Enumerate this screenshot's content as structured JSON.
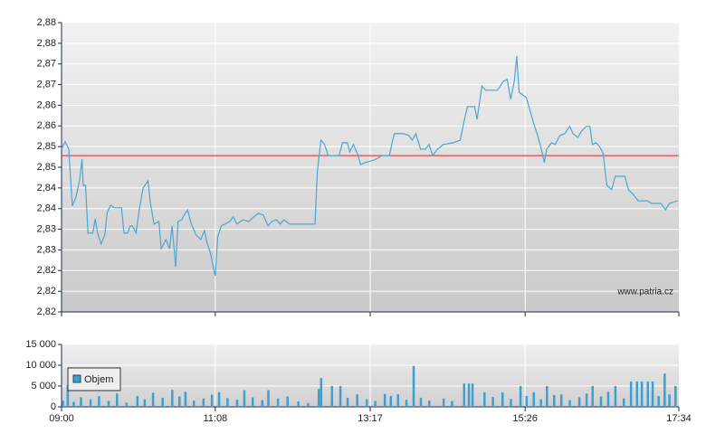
{
  "chart_data": [
    {
      "type": "line",
      "color": "#4aa6d4",
      "watermark": "www.patria.cz",
      "grid": true,
      "ref_line": {
        "value": 2.8515,
        "color": "#e02020"
      },
      "xlim": [
        "09:00",
        "17:34"
      ],
      "ylim": [
        2.8152,
        2.8824
      ],
      "yticks": [
        {
          "value": 2.8152,
          "label": "2,82"
        },
        {
          "value": 2.82,
          "label": "2,82"
        },
        {
          "value": 2.8248,
          "label": "2,82"
        },
        {
          "value": 2.8296,
          "label": "2,83"
        },
        {
          "value": 2.8344,
          "label": "2,83"
        },
        {
          "value": 2.8392,
          "label": "2,84"
        },
        {
          "value": 2.844,
          "label": "2,84"
        },
        {
          "value": 2.8488,
          "label": "2,85"
        },
        {
          "value": 2.8536,
          "label": "2,85"
        },
        {
          "value": 2.8584,
          "label": "2,86"
        },
        {
          "value": 2.8632,
          "label": "2,86"
        },
        {
          "value": 2.868,
          "label": "2,87"
        },
        {
          "value": 2.8728,
          "label": "2,87"
        },
        {
          "value": 2.8776,
          "label": "2,88"
        },
        {
          "value": 2.8824,
          "label": "2,88"
        }
      ],
      "x": [
        "09:00",
        "09:03",
        "09:06",
        "09:09",
        "09:12",
        "09:15",
        "09:17",
        "09:18",
        "09:20",
        "09:22",
        "09:26",
        "09:28",
        "09:30",
        "09:33",
        "09:36",
        "09:38",
        "09:41",
        "09:44",
        "09:50",
        "09:52",
        "09:55",
        "09:57",
        "09:59",
        "10:02",
        "10:05",
        "10:08",
        "10:12",
        "10:14",
        "10:17",
        "10:21",
        "10:23",
        "10:27",
        "10:30",
        "10:32",
        "10:35",
        "10:37",
        "10:40",
        "10:42",
        "10:45",
        "10:48",
        "10:52",
        "10:56",
        "10:59",
        "11:01",
        "11:04",
        "11:07",
        "11:08",
        "11:10",
        "11:13",
        "11:16",
        "11:20",
        "11:23",
        "11:26",
        "11:31",
        "11:36",
        "11:40",
        "11:44",
        "11:48",
        "11:52",
        "11:55",
        "11:59",
        "12:02",
        "12:05",
        "12:10",
        "12:17",
        "12:31",
        "12:33",
        "12:36",
        "12:39",
        "12:42",
        "12:46",
        "12:51",
        "12:54",
        "12:58",
        "13:00",
        "13:03",
        "13:07",
        "13:09",
        "13:13",
        "13:18",
        "13:22",
        "13:27",
        "13:33",
        "13:37",
        "13:45",
        "13:49",
        "13:52",
        "13:55",
        "13:59",
        "14:03",
        "14:06",
        "14:09",
        "14:13",
        "14:18",
        "14:26",
        "14:32",
        "14:35",
        "14:38",
        "14:44",
        "14:46",
        "14:50",
        "14:53",
        "14:56",
        "15:03",
        "15:08",
        "15:11",
        "15:14",
        "15:17",
        "15:19",
        "15:21",
        "15:24",
        "15:27",
        "15:30",
        "15:33",
        "15:36",
        "15:39",
        "15:42",
        "15:44",
        "15:48",
        "15:51",
        "15:55",
        "15:59",
        "16:03",
        "16:06",
        "16:10",
        "16:13",
        "16:17",
        "16:20",
        "16:22",
        "16:25",
        "16:28",
        "16:31",
        "16:34",
        "16:38",
        "16:41",
        "16:49",
        "16:52",
        "16:56",
        "17:00",
        "17:08",
        "17:11",
        "17:19",
        "17:23",
        "17:26",
        "17:33"
      ],
      "values": [
        2.853,
        2.8547,
        2.853,
        2.8398,
        2.8419,
        2.8457,
        2.8507,
        2.8446,
        2.8446,
        2.8335,
        2.8335,
        2.8368,
        2.8335,
        2.831,
        2.8331,
        2.8383,
        2.84,
        2.8394,
        2.8394,
        2.8335,
        2.8335,
        2.8352,
        2.8352,
        2.8335,
        2.8394,
        2.844,
        2.8457,
        2.8404,
        2.8356,
        2.8362,
        2.8299,
        2.832,
        2.8299,
        2.8352,
        2.8257,
        2.8362,
        2.8366,
        2.8377,
        2.8389,
        2.8356,
        2.8331,
        2.832,
        2.8341,
        2.8314,
        2.8289,
        2.8247,
        2.8236,
        2.8326,
        2.8352,
        2.8356,
        2.8362,
        2.8373,
        2.8356,
        2.8366,
        2.8362,
        2.8373,
        2.8381,
        2.8377,
        2.8352,
        2.8362,
        2.8366,
        2.8356,
        2.8366,
        2.8356,
        2.8356,
        2.8356,
        2.8478,
        2.8551,
        2.8541,
        2.8515,
        2.8515,
        2.8515,
        2.8545,
        2.8545,
        2.8524,
        2.8541,
        2.8515,
        2.8494,
        2.8499,
        2.8503,
        2.8507,
        2.8515,
        2.8515,
        2.8566,
        2.8566,
        2.8562,
        2.8551,
        2.8566,
        2.853,
        2.853,
        2.8541,
        2.8515,
        2.853,
        2.8541,
        2.8545,
        2.8551,
        2.8593,
        2.8629,
        2.8629,
        2.8599,
        2.8677,
        2.8667,
        2.8667,
        2.8667,
        2.8688,
        2.8692,
        2.8646,
        2.8688,
        2.8746,
        2.8662,
        2.8656,
        2.865,
        2.862,
        2.8591,
        2.8566,
        2.8536,
        2.8499,
        2.853,
        2.8545,
        2.8541,
        2.8562,
        2.8566,
        2.8583,
        2.8566,
        2.8557,
        2.8572,
        2.8583,
        2.8583,
        2.8541,
        2.8545,
        2.8536,
        2.852,
        2.8446,
        2.8436,
        2.8467,
        2.8467,
        2.8436,
        2.8425,
        2.841,
        2.841,
        2.8404,
        2.8404,
        2.8389,
        2.8404,
        2.841
      ]
    },
    {
      "type": "bar",
      "legend": "upper left",
      "grid": true,
      "xlim": [
        "09:00",
        "17:34"
      ],
      "xticks": [
        "09:00",
        "11:08",
        "13:17",
        "15:26",
        "17:34"
      ],
      "ylim": [
        0,
        15000
      ],
      "yticks": [
        0,
        {
          "value": 5000,
          "label": "5 000"
        },
        {
          "value": 10000,
          "label": "10 000"
        },
        {
          "value": 15000,
          "label": "15 000"
        }
      ],
      "x": [
        "09:01",
        "09:05",
        "09:10",
        "09:16",
        "09:24",
        "09:31",
        "09:39",
        "09:46",
        "09:54",
        "10:03",
        "10:09",
        "10:16",
        "10:24",
        "10:32",
        "10:38",
        "10:43",
        "10:50",
        "10:58",
        "11:05",
        "11:11",
        "11:18",
        "11:26",
        "11:32",
        "11:39",
        "11:47",
        "11:52",
        "12:00",
        "12:08",
        "12:17",
        "12:25",
        "12:34",
        "12:36",
        "12:45",
        "12:52",
        "12:58",
        "13:06",
        "13:14",
        "13:21",
        "13:29",
        "13:34",
        "13:40",
        "13:47",
        "13:53",
        "13:59",
        "14:06",
        "14:18",
        "14:25",
        "14:35",
        "14:39",
        "14:42",
        "14:52",
        "14:59",
        "15:07",
        "15:14",
        "15:22",
        "15:27",
        "15:33",
        "15:39",
        "15:44",
        "15:50",
        "15:56",
        "16:03",
        "16:11",
        "16:17",
        "16:22",
        "16:29",
        "16:35",
        "16:41",
        "16:48",
        "16:54",
        "16:59",
        "17:03",
        "17:08",
        "17:12",
        "17:17",
        "17:22",
        "17:26",
        "17:31"
      ],
      "series": [
        {
          "name": "Objem",
          "color": "#3d9fd0",
          "values": [
            1500,
            5200,
            1200,
            2300,
            1800,
            2600,
            1400,
            3200,
            1000,
            2600,
            1800,
            3400,
            2200,
            4100,
            2500,
            3600,
            1500,
            2000,
            2900,
            3500,
            2100,
            1700,
            4000,
            2300,
            1600,
            4000,
            2000,
            2500,
            1300,
            900,
            4300,
            6900,
            5000,
            5000,
            2200,
            3000,
            1800,
            1400,
            3100,
            2600,
            3000,
            1700,
            9800,
            2200,
            1500,
            2000,
            1400,
            5600,
            5600,
            5600,
            3500,
            2400,
            3500,
            1900,
            5000,
            2600,
            3500,
            1800,
            5000,
            2800,
            3000,
            1600,
            2300,
            3200,
            5000,
            2500,
            3600,
            5000,
            2000,
            6100,
            6100,
            6100,
            6100,
            6100,
            2600,
            8000,
            3000,
            5000
          ]
        }
      ]
    }
  ]
}
